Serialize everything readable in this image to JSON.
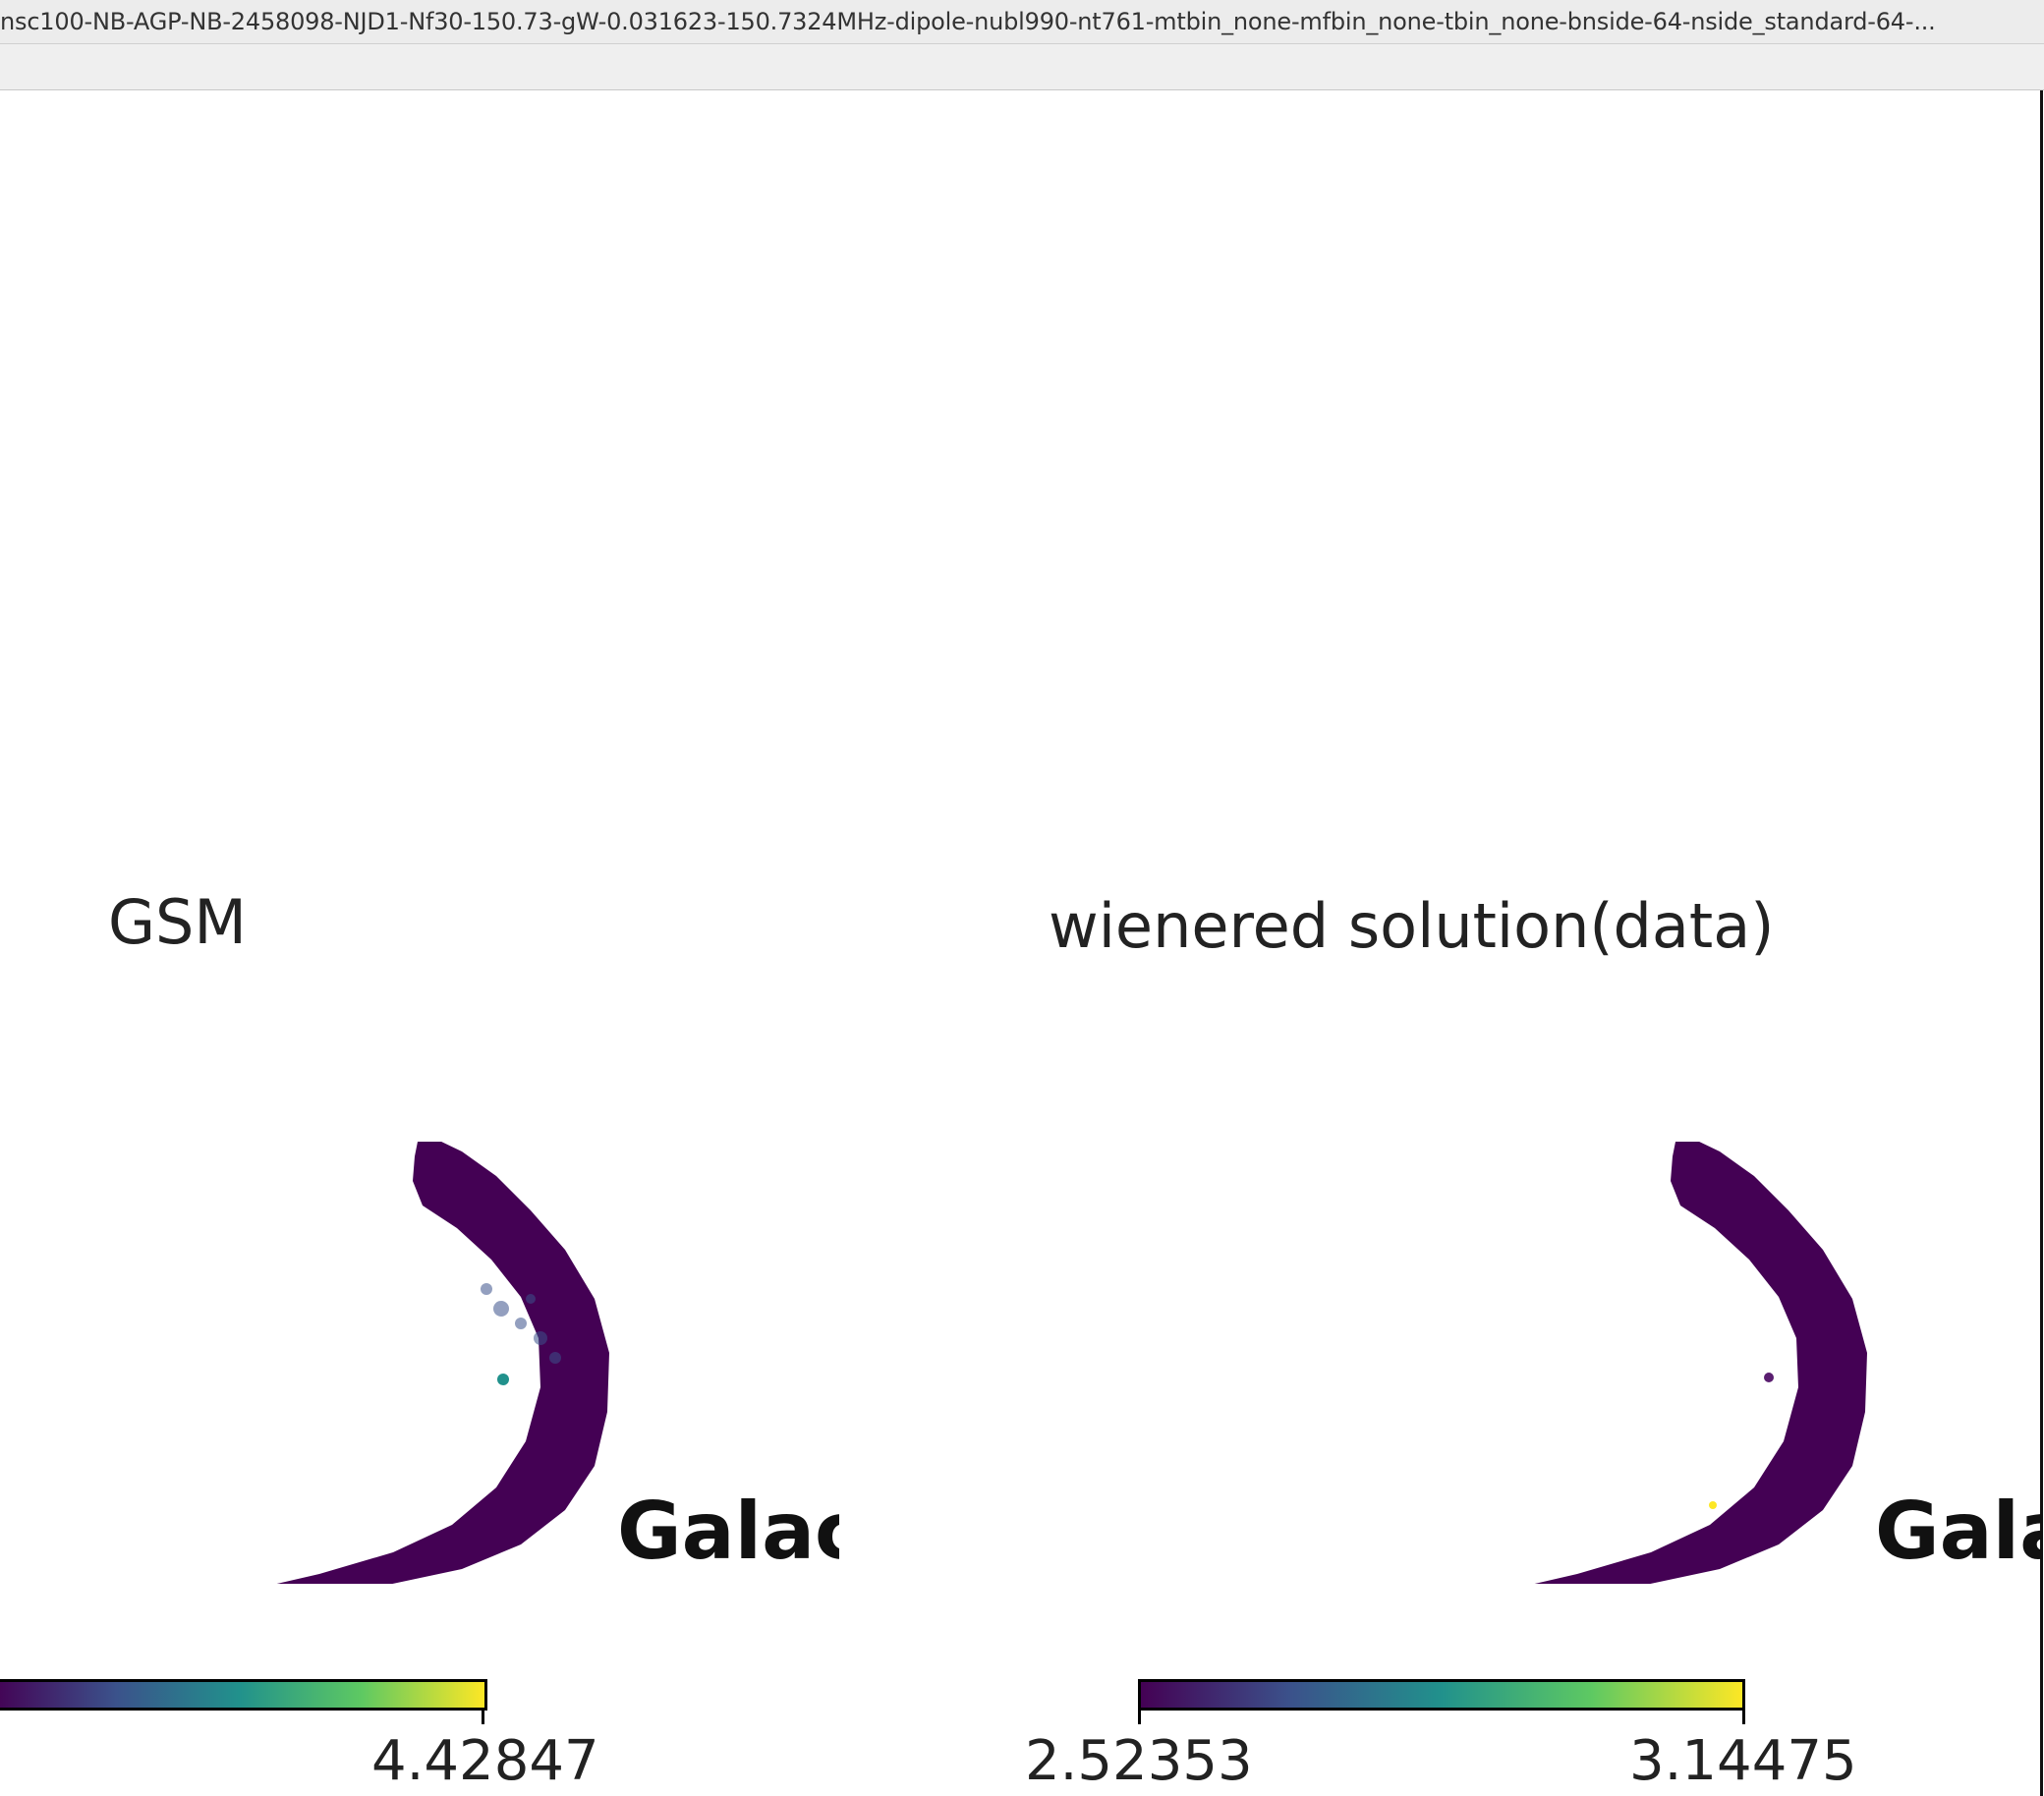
{
  "window": {
    "title": "nsc100-NB-AGP-NB-2458098-NJD1-Nf30-150.73-gW-0.031623-150.7324MHz-dipole-nubl990-nt761-mtbin_none-mfbin_none-tbin_none-bnside-64-nside_standard-64-..."
  },
  "panels": [
    {
      "title": "GSM",
      "galaxy_label": "Galac",
      "colorbar_max": "4.42847",
      "colorbar_cmap": [
        "#440154",
        "#3b528b",
        "#21918c",
        "#5ec962",
        "#fde725"
      ]
    },
    {
      "title": "wienered solution(data)",
      "galaxy_label": "Gala",
      "colorbar_min": "2.52353",
      "colorbar_max": "3.14475",
      "colorbar_cmap": [
        "#440154",
        "#3b528b",
        "#21918c",
        "#5ec962",
        "#fde725"
      ]
    }
  ],
  "colors": {
    "map_fill": "#440154",
    "map_speckle": "#3b528b",
    "map_point": "#21918c",
    "map_highlight": "#fde725"
  }
}
